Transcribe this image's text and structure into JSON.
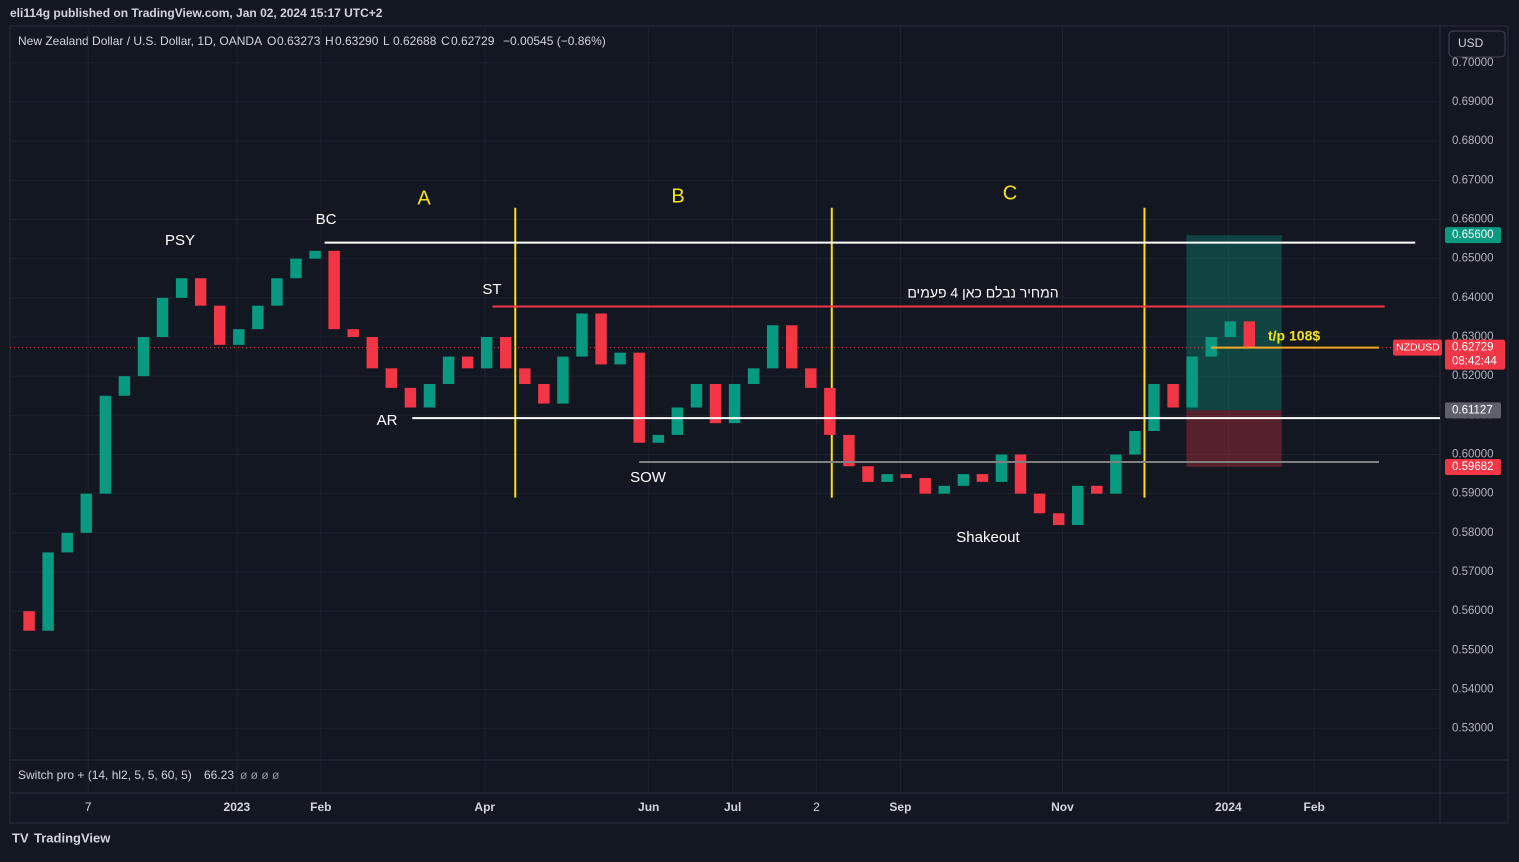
{
  "header": {
    "publisher": "eli114g published on TradingView.com, Jan 02, 2024 15:17 UTC+2",
    "currency_button": "USD",
    "logo": "TradingView"
  },
  "chart_data": {
    "type": "candlestick",
    "symbol_title": "New Zealand Dollar / U.S. Dollar, 1D, OANDA",
    "ohlc": [
      {
        "key": "O",
        "value": "0.63273"
      },
      {
        "key": "H",
        "value": "0.63290"
      },
      {
        "key": "L",
        "value": "0.62688"
      },
      {
        "key": "C",
        "value": "0.62729"
      }
    ],
    "change": "−0.00545 (−0.86%)",
    "x": [
      0,
      1,
      2,
      3,
      4,
      5,
      6,
      7,
      8,
      9,
      10,
      11,
      12,
      13,
      14,
      15,
      16,
      17,
      18,
      19,
      20,
      21,
      22,
      23,
      24,
      25,
      26,
      27,
      28,
      29,
      30,
      31,
      32,
      33,
      34,
      35,
      36,
      37,
      38,
      39,
      40,
      41,
      42,
      43,
      44,
      45,
      46,
      47,
      48,
      49,
      50,
      51,
      52,
      53,
      54,
      55,
      56,
      57,
      58,
      59,
      60,
      61,
      62,
      63,
      64,
      65
    ],
    "series": [
      {
        "name": "NZDUSD",
        "up_color": "#089981",
        "down_color": "#f23645",
        "values": [
          0.56,
          0.555,
          0.575,
          0.58,
          0.59,
          0.615,
          0.62,
          0.63,
          0.64,
          0.645,
          0.638,
          0.628,
          0.632,
          0.638,
          0.645,
          0.65,
          0.652,
          0.632,
          0.63,
          0.622,
          0.617,
          0.612,
          0.618,
          0.625,
          0.622,
          0.63,
          0.622,
          0.618,
          0.613,
          0.625,
          0.636,
          0.623,
          0.626,
          0.603,
          0.605,
          0.612,
          0.618,
          0.608,
          0.618,
          0.622,
          0.633,
          0.622,
          0.617,
          0.605,
          0.597,
          0.593,
          0.595,
          0.594,
          0.59,
          0.592,
          0.595,
          0.593,
          0.6,
          0.59,
          0.585,
          0.582,
          0.592,
          0.59,
          0.6,
          0.606,
          0.618,
          0.612,
          0.625,
          0.63,
          0.634,
          0.62729
        ]
      }
    ],
    "xlim": [
      0,
      75
    ],
    "xticks": [
      {
        "value": 4.1,
        "label": "7"
      },
      {
        "value": 11.9,
        "label": "2023"
      },
      {
        "value": 16.3,
        "label": "Feb"
      },
      {
        "value": 24.9,
        "label": "Apr"
      },
      {
        "value": 33.5,
        "label": "Jun"
      },
      {
        "value": 37.9,
        "label": "Jul"
      },
      {
        "value": 42.3,
        "label": "2"
      },
      {
        "value": 46.7,
        "label": "Sep"
      },
      {
        "value": 55.2,
        "label": "Nov"
      },
      {
        "value": 63.9,
        "label": "2024"
      },
      {
        "value": 68.4,
        "label": "Feb"
      }
    ],
    "ylim": [
      0.522,
      0.702
    ],
    "yticks": [
      {
        "value": 0.53,
        "label": "0.53000"
      },
      {
        "value": 0.54,
        "label": "0.54000"
      },
      {
        "value": 0.55,
        "label": "0.55000"
      },
      {
        "value": 0.56,
        "label": "0.56000"
      },
      {
        "value": 0.57,
        "label": "0.57000"
      },
      {
        "value": 0.58,
        "label": "0.58000"
      },
      {
        "value": 0.59,
        "label": "0.59000"
      },
      {
        "value": 0.6,
        "label": "0.60000"
      },
      {
        "value": 0.61,
        "label": "0.61000"
      },
      {
        "value": 0.62,
        "label": "0.62000"
      },
      {
        "value": 0.63,
        "label": "0.63000"
      },
      {
        "value": 0.64,
        "label": "0.64000"
      },
      {
        "value": 0.65,
        "label": "0.65000"
      },
      {
        "value": 0.66,
        "label": "0.66000"
      },
      {
        "value": 0.67,
        "label": "0.67000"
      },
      {
        "value": 0.68,
        "label": "0.68000"
      },
      {
        "value": 0.69,
        "label": "0.69000"
      },
      {
        "value": 0.7,
        "label": "0.70000"
      }
    ],
    "grid": true,
    "hlines": [
      {
        "value": 0.6541,
        "from": 16.5,
        "to": 73.7,
        "color": "#ffffff"
      },
      {
        "value": 0.6378,
        "from": 25.3,
        "to": 72.1,
        "color": "#f23645"
      },
      {
        "value": 0.6093,
        "from": 21.1,
        "to": 75,
        "color": "#ffffff"
      },
      {
        "value": 0.5981,
        "from": 33,
        "to": 71.8,
        "color": "#808080"
      },
      {
        "value": 0.6273,
        "from": 63,
        "to": 71.8,
        "color": "#f5a623"
      }
    ],
    "vlines": [
      {
        "value": 26.5,
        "color": "#f7e01b"
      },
      {
        "value": 43.1,
        "color": "#f7e01b"
      },
      {
        "value": 59.5,
        "color": "#f7e01b"
      }
    ],
    "position": {
      "from": 61.7,
      "to": 66.7,
      "target": {
        "value": 0.656,
        "label": "0.65600"
      },
      "entry": {
        "value": 0.61127,
        "label": "0.61127"
      },
      "stop": {
        "value": 0.59682,
        "label": "0.59682"
      }
    },
    "last_price": {
      "value": 0.62729,
      "label": "0.62729",
      "symbol": "NZDUSD",
      "countdown": "08:42:44"
    },
    "labels": {
      "psy": "PSY",
      "bc": "BC",
      "st": "ST",
      "ar": "AR",
      "sow": "SOW",
      "shakeout": "Shakeout",
      "a": "A",
      "b": "B",
      "c": "C",
      "hebrew": "המחיר נבלם כאן 4 פעמים",
      "tp": "t/p 108$"
    },
    "indicator": {
      "name": "Switch pro + (14, hl2, 5, 5, 60, 5)",
      "value": "66.23",
      "extra": "ø ø ø ø"
    }
  }
}
